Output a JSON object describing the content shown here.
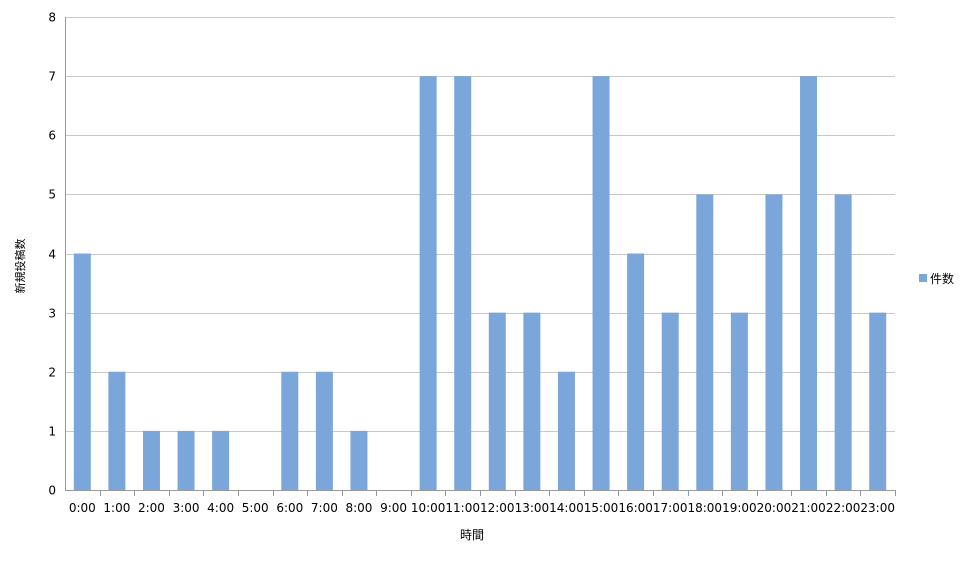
{
  "chart_data": {
    "type": "bar",
    "xlabel": "時間",
    "ylabel": "新規投稿数",
    "ylim": [
      0,
      8
    ],
    "yticks": [
      0,
      1,
      2,
      3,
      4,
      5,
      6,
      7,
      8
    ],
    "grid": true,
    "legend_position": "right",
    "categories": [
      "0:00",
      "1:00",
      "2:00",
      "3:00",
      "4:00",
      "5:00",
      "6:00",
      "7:00",
      "8:00",
      "9:00",
      "10:00",
      "11:00",
      "12:00",
      "13:00",
      "14:00",
      "15:00",
      "16:00",
      "17:00",
      "18:00",
      "19:00",
      "20:00",
      "21:00",
      "22:00",
      "23:00"
    ],
    "series": [
      {
        "name": "件数",
        "color": "#7ba6d9",
        "values": [
          4,
          2,
          1,
          1,
          1,
          0,
          2,
          2,
          1,
          0,
          7,
          7,
          3,
          3,
          2,
          7,
          4,
          3,
          5,
          3,
          5,
          7,
          5,
          3
        ]
      }
    ]
  }
}
